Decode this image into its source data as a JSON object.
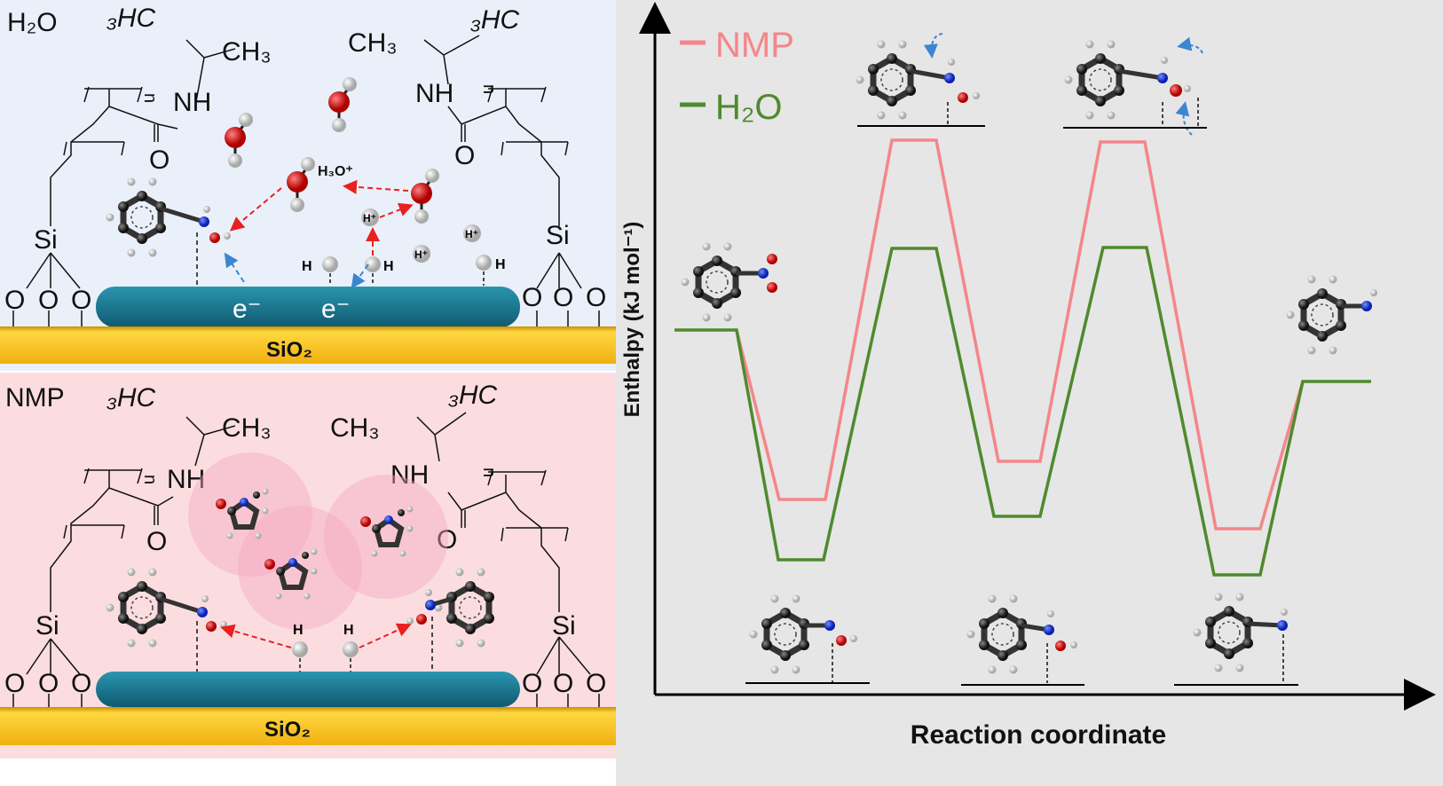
{
  "top_panel": {
    "solvent_label": "H₂O",
    "ch3_left": "₃HC",
    "ch3_right": "CH₃",
    "ch3_left2": "CH₃",
    "ch3_right2": "₃HC",
    "nh": "NH",
    "o": "O",
    "si": "Si",
    "n": "n",
    "h3o": "H₃O⁺",
    "h_plus": "H⁺",
    "h": "H",
    "electron": "e⁻",
    "support": "SiO₂"
  },
  "bottom_panel": {
    "solvent_label": "NMP",
    "ch3_left": "₃HC",
    "ch3_right": "CH₃",
    "ch3_left2": "CH₃",
    "ch3_right2": "₃HC",
    "nh": "NH",
    "o": "O",
    "si": "Si",
    "n": "n",
    "h": "H",
    "support": "SiO₂"
  },
  "energy_diagram": {
    "ylabel": "Enthalpy (kJ mol⁻¹)",
    "xlabel": "Reaction coordinate",
    "legend": [
      {
        "label": "NMP",
        "color": "#f4868a"
      },
      {
        "label": "H₂O",
        "color": "#4f8a2e"
      }
    ]
  },
  "colors": {
    "top_bg": "#eaf0f9",
    "bottom_bg": "#fbdde0",
    "support": "#f6c21c",
    "catalyst": "#1e7a94",
    "oxygen": "#d21414",
    "nitrogen": "#1a3ad8",
    "carbon": "#333333",
    "hydrogen": "#e6e6e6",
    "arrow_red": "#e82020",
    "arrow_blue": "#3a86d0",
    "chart_bg": "#e6e6e6"
  }
}
